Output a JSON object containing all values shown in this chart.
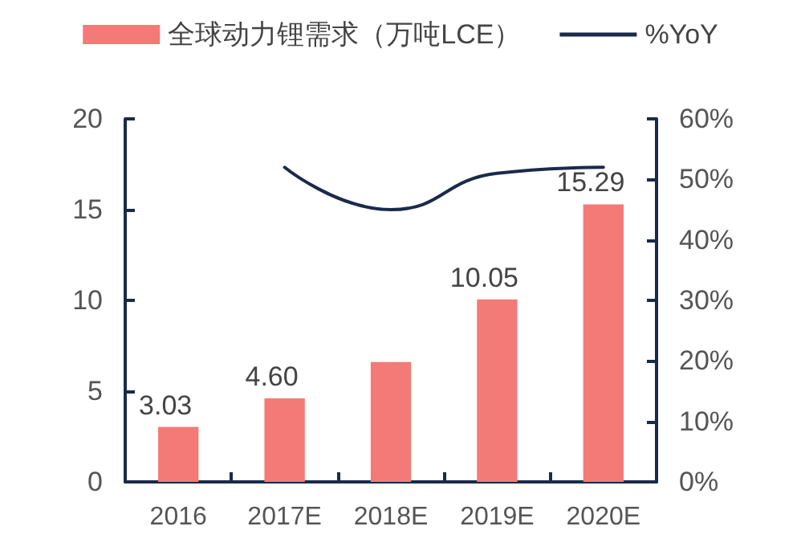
{
  "chart_data": {
    "type": "bar",
    "categories": [
      "2016",
      "2017E",
      "2018E",
      "2019E",
      "2020E"
    ],
    "series": [
      {
        "name": "全球动力锂需求（万吨LCE）",
        "color": "#f47a78",
        "values": [
          3.03,
          4.6,
          6.6,
          10.05,
          15.29
        ],
        "value_labels": [
          "3.03",
          "4.60",
          null,
          "10.05",
          "15.29"
        ]
      },
      {
        "name": "%YoY",
        "type": "line",
        "axis": "y2",
        "color": "#1a2a4a",
        "values": [
          null,
          52,
          45,
          51,
          52
        ]
      }
    ],
    "ylim": [
      0,
      20
    ],
    "yticks": [
      0,
      5,
      10,
      15,
      20
    ],
    "y2lim": [
      0,
      60
    ],
    "y2ticks": [
      {
        "value": 0,
        "label": "0%"
      },
      {
        "value": 10,
        "label": "10%"
      },
      {
        "value": 20,
        "label": "20%"
      },
      {
        "value": 30,
        "label": "30%"
      },
      {
        "value": 40,
        "label": "40%"
      },
      {
        "value": 50,
        "label": "50%"
      },
      {
        "value": 60,
        "label": "60%"
      }
    ],
    "grid": false,
    "legend": "top",
    "marker": "none",
    "line_style": "solid"
  }
}
